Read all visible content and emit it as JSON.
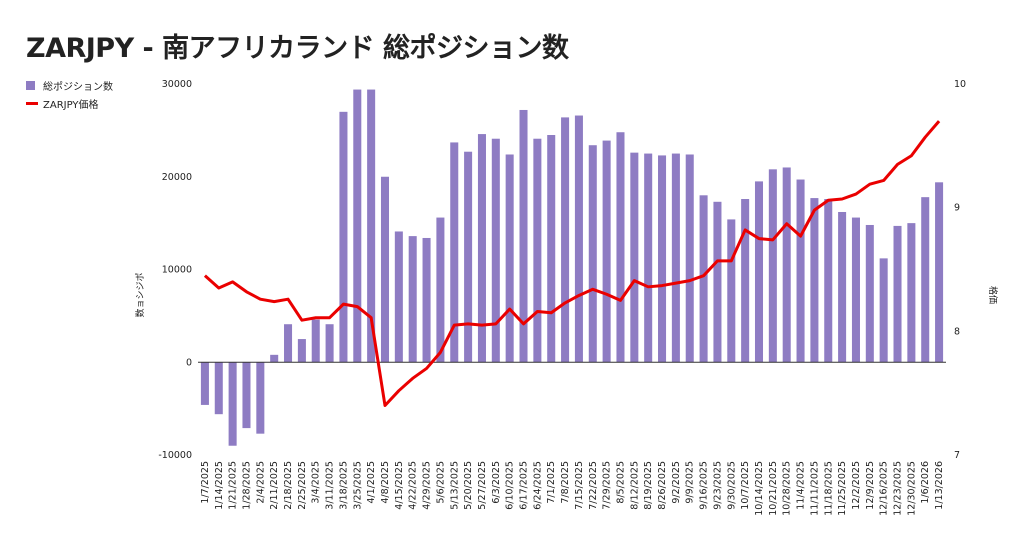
{
  "colors": {
    "bar": "#8e7cc3",
    "line": "#ea0000"
  },
  "chart_data": {
    "type": "bar+line",
    "title": "ZARJPY - 南アフリカランド 総ポジション数",
    "ylabel": "数ョシジポ",
    "y2label": "格価",
    "ylim": [
      -10000,
      30000
    ],
    "y2lim": [
      7,
      10
    ],
    "yticks": [
      "30000",
      "20000",
      "10000",
      "0",
      "-10000"
    ],
    "y2ticks": [
      "10",
      "9",
      "8",
      "7"
    ],
    "categories": [
      "1/7/2025",
      "1/14/2025",
      "1/21/2025",
      "1/28/2025",
      "2/4/2025",
      "2/11/2025",
      "2/18/2025",
      "2/25/2025",
      "3/4/2025",
      "3/11/2025",
      "3/18/2025",
      "3/25/2025",
      "4/1/2025",
      "4/8/2025",
      "4/15/2025",
      "4/22/2025",
      "4/29/2025",
      "5/6/2025",
      "5/13/2025",
      "5/20/2025",
      "5/27/2025",
      "6/3/2025",
      "6/10/2025",
      "6/17/2025",
      "6/24/2025",
      "7/1/2025",
      "7/8/2025",
      "7/15/2025",
      "7/22/2025",
      "7/29/2025",
      "8/5/2025",
      "8/12/2025",
      "8/19/2025",
      "8/26/2025",
      "9/2/2025",
      "9/9/2025",
      "9/16/2025",
      "9/23/2025",
      "9/30/2025",
      "10/7/2025",
      "10/14/2025",
      "10/21/2025",
      "10/28/2025",
      "11/4/2025",
      "11/11/2025",
      "11/18/2025",
      "11/25/2025",
      "12/2/2025",
      "12/9/2025",
      "12/16/2025",
      "12/23/2025",
      "12/30/2025",
      "1/6/2026",
      "1/13/2026"
    ],
    "series": [
      {
        "name": "総ポジション数",
        "type": "bar",
        "values": [
          -4600,
          -5600,
          -9000,
          -7100,
          -7700,
          800,
          4100,
          2500,
          4600,
          4100,
          27000,
          29400,
          29400,
          20000,
          14100,
          13600,
          13400,
          15600,
          23700,
          22700,
          24600,
          24100,
          22400,
          27200,
          24100,
          24500,
          26400,
          26600,
          23400,
          23900,
          24800,
          22600,
          22500,
          22300,
          22500,
          22400,
          18000,
          17300,
          15400,
          17600,
          19500,
          20800,
          21000,
          19700,
          17700,
          17600,
          16200,
          15600,
          14800,
          11200,
          14700,
          15000,
          17800,
          19400
        ]
      },
      {
        "name": "ZARJPY価格",
        "type": "line",
        "axis": "right",
        "values": [
          8.45,
          8.35,
          8.4,
          8.32,
          8.26,
          8.24,
          8.26,
          8.09,
          8.11,
          8.11,
          8.22,
          8.2,
          8.11,
          7.4,
          7.52,
          7.62,
          7.7,
          7.83,
          8.05,
          8.06,
          8.05,
          8.06,
          8.18,
          8.06,
          8.16,
          8.15,
          8.23,
          8.29,
          8.34,
          8.3,
          8.25,
          8.41,
          8.36,
          8.37,
          8.39,
          8.41,
          8.45,
          8.57,
          8.57,
          8.82,
          8.75,
          8.74,
          8.87,
          8.77,
          8.98,
          9.06,
          9.07,
          9.11,
          9.19,
          9.22,
          9.35,
          9.42,
          9.57,
          9.7
        ]
      }
    ],
    "legend_position": "left",
    "grid": false
  }
}
